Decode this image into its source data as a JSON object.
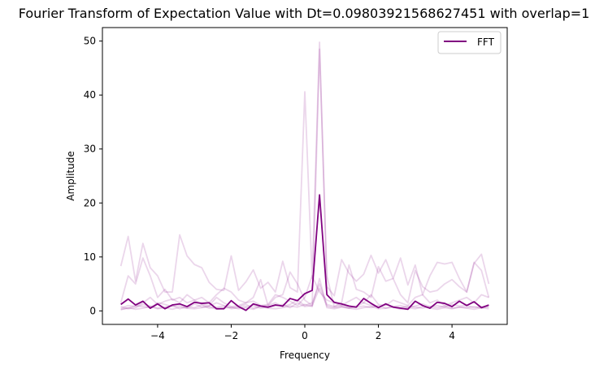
{
  "chart_data": {
    "type": "line",
    "title": "Fourier Transform of Expectation Value with Dt=0.09803921568627451 with overlap=1",
    "xlabel": "Frequency",
    "ylabel": "Amplitude",
    "xlim": [
      -5.5,
      5.5
    ],
    "ylim": [
      -2.5,
      52.5
    ],
    "xticks": [
      -4,
      -2,
      0,
      2,
      4
    ],
    "yticks": [
      0,
      10,
      20,
      30,
      40,
      50
    ],
    "xtick_labels": [
      "−4",
      "−2",
      "0",
      "2",
      "4"
    ],
    "ytick_labels": [
      "0",
      "10",
      "20",
      "30",
      "40",
      "50"
    ],
    "grid": false,
    "legend": {
      "placement": "top-right",
      "entries": [
        "FFT"
      ]
    },
    "main_color": "#800080",
    "faint_color": "#800080",
    "x": [
      -5.0,
      -4.8,
      -4.6,
      -4.4,
      -4.2,
      -4.0,
      -3.8,
      -3.6,
      -3.4,
      -3.2,
      -3.0,
      -2.8,
      -2.6,
      -2.4,
      -2.2,
      -2.0,
      -1.8,
      -1.6,
      -1.4,
      -1.2,
      -1.0,
      -0.8,
      -0.6,
      -0.4,
      -0.2,
      0.0,
      0.2,
      0.4,
      0.6,
      0.8,
      1.0,
      1.2,
      1.4,
      1.6,
      1.8,
      2.0,
      2.2,
      2.4,
      2.6,
      2.8,
      3.0,
      3.2,
      3.4,
      3.6,
      3.8,
      4.0,
      4.2,
      4.4,
      4.6,
      4.8,
      5.0
    ],
    "series": [
      {
        "name": "FFT",
        "values": [
          1.2,
          2.2,
          1.1,
          1.8,
          0.5,
          1.3,
          0.4,
          1.1,
          1.3,
          0.8,
          1.6,
          1.4,
          1.5,
          0.4,
          0.4,
          1.9,
          0.8,
          0.1,
          1.3,
          0.9,
          0.7,
          1.1,
          0.9,
          2.3,
          1.9,
          3.2,
          3.8,
          21.5,
          3.0,
          1.6,
          1.3,
          0.9,
          0.7,
          2.3,
          1.4,
          0.6,
          1.3,
          0.7,
          0.5,
          0.3,
          1.8,
          1.0,
          0.5,
          1.6,
          1.4,
          0.8,
          1.8,
          1.0,
          1.7,
          0.6,
          1.1
        ]
      }
    ],
    "faint_series": [
      {
        "values": [
          8.3,
          13.8,
          5.5,
          12.5,
          8.0,
          6.5,
          3.5,
          3.5,
          14.1,
          10.2,
          8.6,
          8.0,
          5.3,
          4.0,
          3.8,
          10.2,
          3.8,
          5.4,
          7.6,
          4.2,
          5.3,
          3.5,
          9.2,
          4.3,
          3.5,
          40.6,
          6.0,
          49.8,
          4.5,
          2.8,
          9.5,
          7.0,
          5.5,
          6.8,
          10.3,
          7.0,
          9.5,
          6.0,
          9.8,
          4.8,
          8.5,
          3.0,
          6.5,
          9.0,
          8.7,
          9.0,
          6.0,
          3.5,
          8.8,
          10.5,
          5.0
        ]
      },
      {
        "values": [
          1.5,
          6.5,
          5.0,
          9.8,
          6.5,
          2.5,
          4.0,
          2.0,
          2.5,
          1.5,
          2.0,
          2.5,
          1.5,
          3.0,
          4.2,
          3.5,
          2.0,
          1.5,
          2.5,
          5.8,
          1.0,
          2.5,
          3.0,
          7.2,
          5.0,
          2.0,
          1.0,
          48.5,
          6.5,
          0.8,
          1.5,
          8.5,
          4.0,
          3.5,
          2.5,
          8.2,
          5.5,
          6.0,
          3.0,
          1.5,
          7.5,
          4.5,
          3.5,
          3.8,
          5.0,
          5.8,
          4.5,
          3.5,
          9.0,
          7.5,
          2.5
        ]
      },
      {
        "values": [
          0.5,
          1.0,
          0.8,
          1.5,
          2.5,
          1.2,
          1.8,
          2.2,
          1.5,
          3.0,
          2.0,
          1.2,
          1.0,
          2.5,
          1.5,
          0.8,
          1.0,
          1.5,
          1.8,
          1.0,
          1.2,
          3.0,
          2.5,
          1.8,
          1.0,
          2.5,
          6.5,
          3.5,
          2.0,
          1.5,
          1.0,
          1.8,
          2.5,
          1.5,
          3.0,
          1.2,
          1.0,
          2.0,
          1.5,
          1.0,
          2.5,
          3.0,
          1.5,
          2.0,
          1.0,
          1.5,
          2.0,
          2.5,
          1.5,
          3.0,
          2.5
        ]
      },
      {
        "values": [
          0.3,
          0.5,
          1.0,
          0.8,
          0.6,
          1.5,
          1.2,
          0.8,
          1.0,
          0.5,
          1.3,
          0.7,
          0.9,
          1.5,
          1.0,
          0.6,
          0.8,
          1.2,
          0.5,
          0.9,
          1.0,
          1.5,
          0.8,
          1.2,
          2.0,
          1.0,
          1.5,
          5.0,
          1.2,
          0.8,
          1.0,
          0.6,
          0.9,
          1.5,
          1.0,
          0.7,
          1.2,
          0.8,
          1.0,
          0.6,
          0.9,
          1.3,
          0.8,
          1.0,
          0.7,
          1.2,
          0.9,
          1.0,
          0.6,
          0.8,
          0.7
        ]
      },
      {
        "values": [
          0.8,
          0.4,
          0.6,
          1.2,
          0.9,
          0.5,
          0.7,
          1.0,
          0.4,
          0.8,
          0.6,
          1.1,
          0.5,
          0.7,
          0.9,
          0.4,
          0.6,
          0.8,
          1.0,
          0.5,
          0.7,
          0.9,
          1.2,
          0.6,
          1.5,
          0.8,
          1.0,
          4.2,
          0.9,
          0.6,
          0.8,
          0.5,
          0.7,
          0.9,
          0.6,
          1.0,
          0.5,
          0.8,
          0.6,
          0.9,
          0.7,
          0.5,
          0.8,
          0.6,
          0.9,
          0.5,
          0.7,
          0.6,
          0.8,
          0.5,
          0.9
        ]
      },
      {
        "values": [
          0.2,
          0.6,
          0.3,
          0.5,
          0.8,
          0.4,
          0.6,
          0.3,
          0.7,
          0.5,
          0.4,
          0.6,
          0.8,
          0.3,
          0.5,
          0.7,
          0.4,
          0.6,
          0.3,
          0.8,
          0.5,
          0.4,
          0.6,
          0.9,
          0.7,
          1.2,
          0.8,
          6.0,
          0.6,
          0.4,
          0.7,
          0.5,
          0.3,
          0.6,
          0.8,
          0.4,
          0.5,
          0.7,
          0.3,
          0.6,
          0.4,
          0.8,
          0.5,
          0.3,
          0.6,
          0.4,
          0.7,
          0.5,
          0.3,
          0.6,
          0.4
        ]
      }
    ]
  }
}
